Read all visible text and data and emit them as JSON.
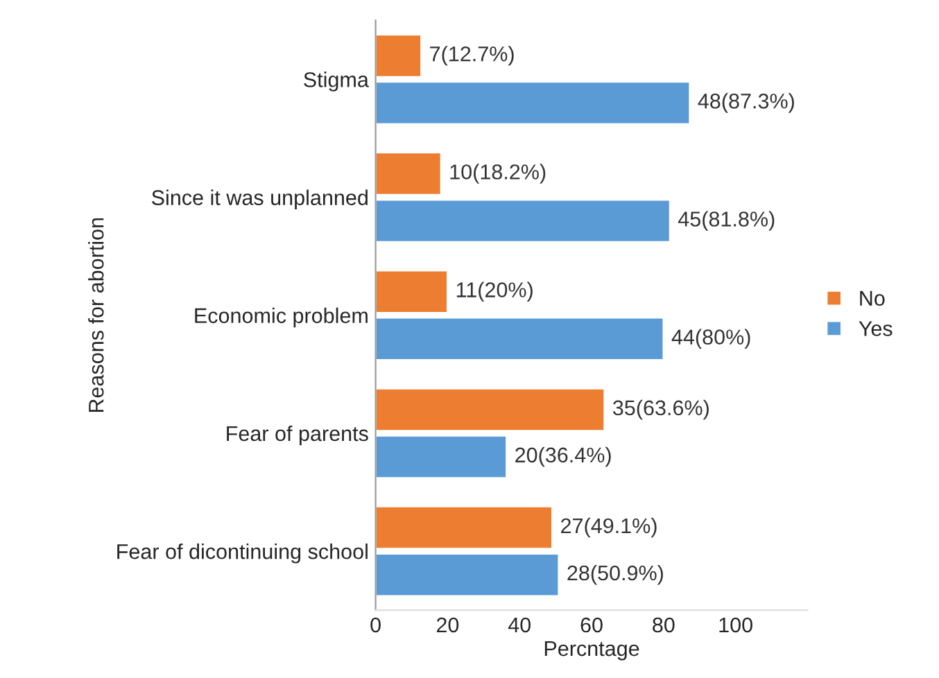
{
  "chart_data": {
    "type": "bar",
    "orientation": "horizontal",
    "xlabel": "Percntage",
    "ylabel": "Reasons for abortion",
    "categories": [
      "Stigma",
      "Since it was unplanned",
      "Economic problem",
      "Fear of parents",
      "Fear of dicontinuing school"
    ],
    "series": [
      {
        "name": "No",
        "color": "#ed7d31",
        "values": [
          12.7,
          18.2,
          20,
          63.6,
          49.1
        ],
        "value_labels": [
          "7(12.7%)",
          "10(18.2%)",
          "11(20%)",
          "35(63.6%)",
          "27(49.1%)"
        ]
      },
      {
        "name": "Yes",
        "color": "#5b9bd5",
        "values": [
          87.3,
          81.8,
          80,
          36.4,
          50.9
        ],
        "value_labels": [
          "48(87.3%)",
          "45(81.8%)",
          "44(80%)",
          "20(36.4%)",
          "28(50.9%)"
        ]
      }
    ],
    "xlim": [
      0,
      120
    ],
    "xticks": [
      0,
      20,
      40,
      60,
      80,
      100
    ],
    "legend": "right",
    "grid": false
  }
}
